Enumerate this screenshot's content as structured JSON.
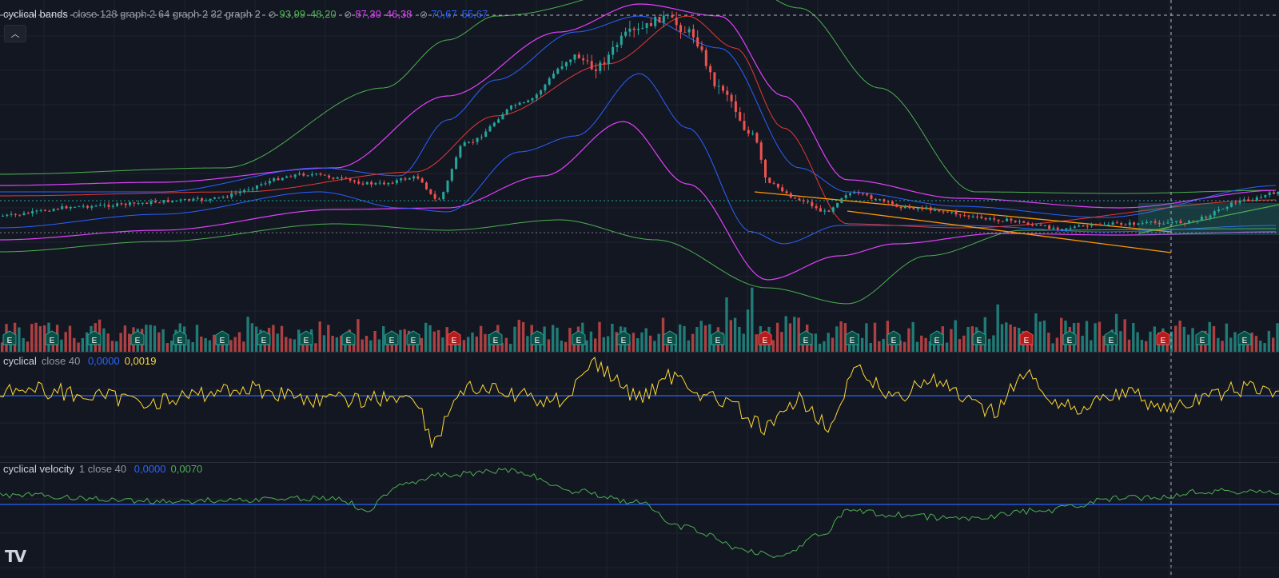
{
  "main_pane": {
    "legend": {
      "name": "cyclical bands",
      "args": "close 128 graph 2 64 graph 2 32 graph 2",
      "groups": [
        {
          "a": "93,99",
          "b": "48,20",
          "color_a": "#4caf50",
          "color_b": "#4caf50"
        },
        {
          "a": "87,30",
          "b": "46,38",
          "color_a": "#e040fb",
          "color_b": "#e040fb"
        },
        {
          "a": "70,67",
          "b": "55,67",
          "color_a": "#2962ff",
          "color_b": "#2962ff"
        }
      ]
    },
    "collapse_icon": "chevron-up-icon",
    "earnings_badge": "E",
    "colors": {
      "up": "#26a69a",
      "down": "#ef5350",
      "band_outer": "#4caf50",
      "band_mid": "#e040fb",
      "band_inner": "#2962ff",
      "trend": "#ff9800",
      "ma": "#e53935"
    }
  },
  "oscillator_pane": {
    "name": "cyclical",
    "args": "close 40",
    "value_zero": "0,0000",
    "value_current": "0,0019",
    "colors": {
      "zero": "#2962ff",
      "line": "#fdd835"
    }
  },
  "velocity_pane": {
    "name": "cyclical velocity",
    "args": "1 close 40",
    "value_zero": "0,0000",
    "value_current": "0,0070",
    "colors": {
      "zero": "#2962ff",
      "line": "#4caf50"
    }
  },
  "logo": "TV"
}
